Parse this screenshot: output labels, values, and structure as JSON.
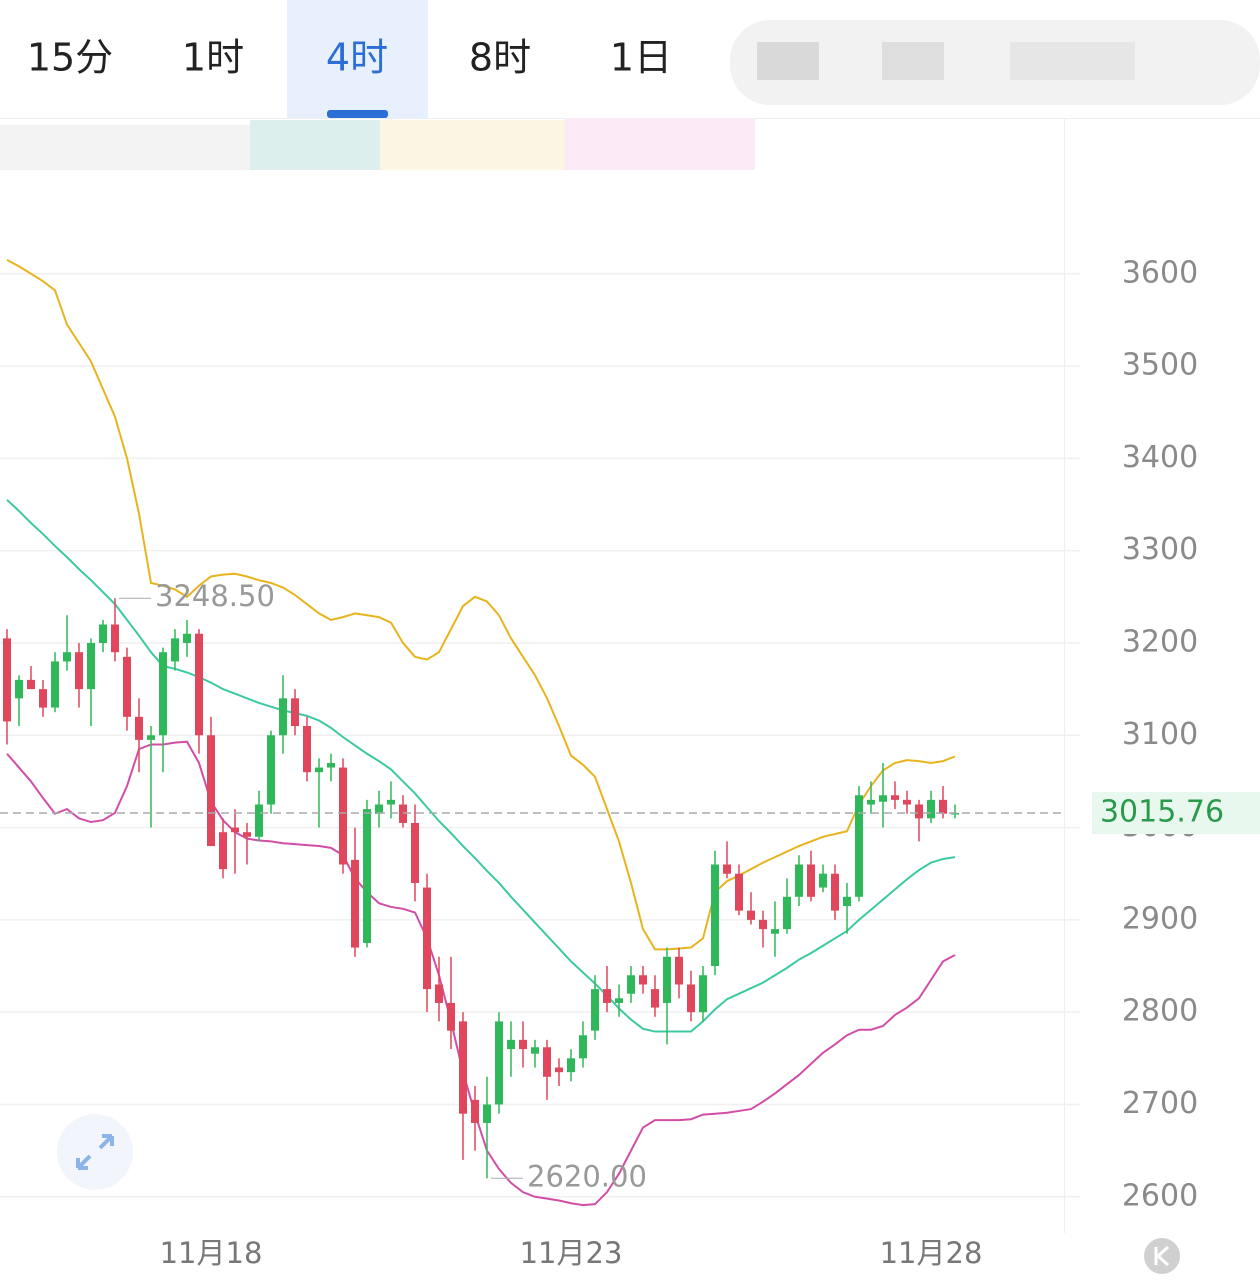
{
  "tabs": [
    "15分",
    "1时",
    "4时",
    "8时",
    "1日"
  ],
  "selected_tab": 2,
  "chart_data": {
    "type": "candlestick",
    "categories": [
      null,
      null,
      null,
      null,
      null,
      null,
      null,
      null,
      null,
      null,
      null,
      null,
      null,
      null,
      null,
      null,
      null,
      "11月18",
      null,
      null,
      null,
      null,
      null,
      null,
      null,
      null,
      null,
      null,
      null,
      null,
      null,
      null,
      null,
      null,
      null,
      null,
      null,
      null,
      null,
      null,
      null,
      null,
      null,
      null,
      null,
      null,
      null,
      "11月23",
      null,
      null,
      null,
      null,
      null,
      null,
      null,
      null,
      null,
      null,
      null,
      null,
      null,
      null,
      null,
      null,
      null,
      null,
      null,
      null,
      null,
      null,
      null,
      null,
      null,
      null,
      null,
      null,
      null,
      "11月28",
      null,
      null
    ],
    "open": [
      3205,
      3140,
      3160,
      3150,
      3130,
      3180,
      3190,
      3150,
      3200,
      3220,
      3185,
      3120,
      3095,
      3100,
      3180,
      3200,
      3210,
      3100,
      2995,
      3000,
      2995,
      2990,
      3025,
      3100,
      3140,
      3110,
      3060,
      3065,
      3065,
      2965,
      2875,
      3015,
      3025,
      3025,
      3005,
      2935,
      2830,
      2810,
      2790,
      2705,
      2680,
      2700,
      2760,
      2770,
      2755,
      2762,
      2740,
      2735,
      2750,
      2780,
      2825,
      2810,
      2820,
      2840,
      2825,
      2810,
      2860,
      2830,
      2800,
      2850,
      2960,
      2950,
      2910,
      2900,
      2885,
      2890,
      2925,
      2960,
      2935,
      2950,
      2915,
      2925,
      3025,
      3028,
      3035,
      3030,
      3025,
      3010,
      3030,
      3015
    ],
    "high": [
      3215,
      3165,
      3175,
      3160,
      3190,
      3230,
      3200,
      3205,
      3225,
      3248.5,
      3195,
      3140,
      3110,
      3195,
      3215,
      3225,
      3215,
      3120,
      3010,
      3020,
      3005,
      3040,
      3105,
      3165,
      3150,
      3120,
      3075,
      3080,
      3075,
      3000,
      3030,
      3040,
      3050,
      3035,
      3025,
      2950,
      2860,
      2860,
      2800,
      2720,
      2730,
      2800,
      2790,
      2790,
      2770,
      2770,
      2750,
      2760,
      2790,
      2840,
      2850,
      2830,
      2850,
      2850,
      2840,
      2870,
      2870,
      2845,
      2850,
      2975,
      2985,
      2960,
      2930,
      2910,
      2920,
      2945,
      2970,
      2975,
      2960,
      2960,
      2940,
      3045,
      3050,
      3070,
      3050,
      3040,
      3030,
      3040,
      3045,
      3025
    ],
    "low": [
      3090,
      3110,
      3150,
      3120,
      3125,
      3170,
      3130,
      3110,
      3190,
      3180,
      3105,
      3060,
      3000,
      3060,
      3170,
      3185,
      3080,
      2980,
      2945,
      2950,
      2960,
      2985,
      3015,
      3080,
      3100,
      3050,
      3000,
      3050,
      2950,
      2860,
      2870,
      3000,
      3010,
      3000,
      2920,
      2800,
      2790,
      2760,
      2640,
      2650,
      2620,
      2690,
      2730,
      2740,
      2740,
      2705,
      2720,
      2725,
      2740,
      2770,
      2800,
      2795,
      2810,
      2820,
      2795,
      2765,
      2815,
      2790,
      2790,
      2840,
      2945,
      2905,
      2895,
      2870,
      2860,
      2885,
      2915,
      2920,
      2930,
      2900,
      2885,
      2920,
      3015,
      3000,
      3020,
      3015,
      2985,
      3005,
      3010,
      3010
    ],
    "close": [
      3115,
      3160,
      3150,
      3130,
      3180,
      3190,
      3150,
      3200,
      3220,
      3190,
      3120,
      3095,
      3100,
      3190,
      3205,
      3210,
      3100,
      2980,
      2955,
      2995,
      2990,
      3025,
      3100,
      3140,
      3110,
      3060,
      3065,
      3070,
      2960,
      2870,
      3020,
      3025,
      3030,
      3005,
      2940,
      2825,
      2810,
      2780,
      2690,
      2680,
      2700,
      2790,
      2770,
      2760,
      2762,
      2730,
      2735,
      2750,
      2775,
      2825,
      2810,
      2815,
      2840,
      2830,
      2805,
      2860,
      2830,
      2800,
      2840,
      2960,
      2950,
      2910,
      2900,
      2890,
      2890,
      2925,
      2960,
      2925,
      2950,
      2910,
      2925,
      3035,
      3030,
      3035,
      3030,
      3025,
      3010,
      3030,
      3015,
      3015.76
    ],
    "up_color": "#2fb85a",
    "down_color": "#e0475c",
    "bands": [
      {
        "color": "#e8b41e",
        "values": [
          3615,
          3608,
          3600,
          3592,
          3582,
          3545,
          3525,
          3505,
          3475,
          3445,
          3400,
          3340,
          3265,
          3262,
          3258,
          3250,
          3262,
          3272,
          3274,
          3275,
          3272,
          3268,
          3265,
          3260,
          3252,
          3242,
          3232,
          3225,
          3228,
          3232,
          3230,
          3228,
          3222,
          3200,
          3185,
          3182,
          3190,
          3215,
          3240,
          3250,
          3245,
          3230,
          3205,
          3185,
          3165,
          3140,
          3110,
          3078,
          3068,
          3055,
          3020,
          2985,
          2940,
          2890,
          2868,
          2868,
          2869,
          2870,
          2880,
          2930,
          2942,
          2948,
          2955,
          2962,
          2968,
          2974,
          2980,
          2985,
          2990,
          2993,
          2996,
          3025,
          3045,
          3062,
          3070,
          3073,
          3072,
          3070,
          3072,
          3077
        ]
      },
      {
        "color": "#3cc9a2",
        "values": [
          3355,
          3343,
          3330,
          3318,
          3305,
          3293,
          3280,
          3268,
          3255,
          3242,
          3225,
          3208,
          3190,
          3175,
          3172,
          3168,
          3163,
          3157,
          3150,
          3145,
          3140,
          3135,
          3131,
          3127,
          3124,
          3121,
          3116,
          3108,
          3098,
          3089,
          3080,
          3072,
          3063,
          3050,
          3037,
          3022,
          3007,
          2994,
          2980,
          2967,
          2953,
          2940,
          2925,
          2911,
          2897,
          2883,
          2869,
          2855,
          2843,
          2831,
          2818,
          2804,
          2792,
          2782,
          2779,
          2779,
          2779,
          2779,
          2790,
          2803,
          2814,
          2820,
          2826,
          2832,
          2840,
          2848,
          2857,
          2864,
          2872,
          2880,
          2888,
          2900,
          2911,
          2922,
          2933,
          2944,
          2954,
          2962,
          2966,
          2968
        ]
      },
      {
        "color": "#d24ea6",
        "values": [
          3080,
          3065,
          3050,
          3032,
          3015,
          3020,
          3010,
          3006,
          3008,
          3016,
          3045,
          3085,
          3090,
          3090,
          3092,
          3093,
          3070,
          3028,
          3008,
          2995,
          2988,
          2986,
          2985,
          2983,
          2982,
          2981,
          2980,
          2978,
          2970,
          2945,
          2930,
          2918,
          2914,
          2912,
          2908,
          2880,
          2840,
          2790,
          2735,
          2690,
          2650,
          2630,
          2615,
          2605,
          2600,
          2598,
          2596,
          2593,
          2591,
          2592,
          2605,
          2625,
          2650,
          2675,
          2683,
          2683,
          2683,
          2684,
          2689,
          2690,
          2691,
          2693,
          2695,
          2703,
          2712,
          2722,
          2732,
          2744,
          2756,
          2765,
          2775,
          2781,
          2781,
          2785,
          2797,
          2805,
          2815,
          2835,
          2855,
          2862
        ]
      }
    ],
    "max_label": "3248.50",
    "min_label": "2620.00",
    "last_price_label": "3015.76",
    "ylim": [
      2564,
      3707
    ],
    "yticks": [
      2600,
      2700,
      2800,
      2900,
      3000,
      3100,
      3200,
      3300,
      3400,
      3500,
      3600
    ],
    "grid": true
  }
}
